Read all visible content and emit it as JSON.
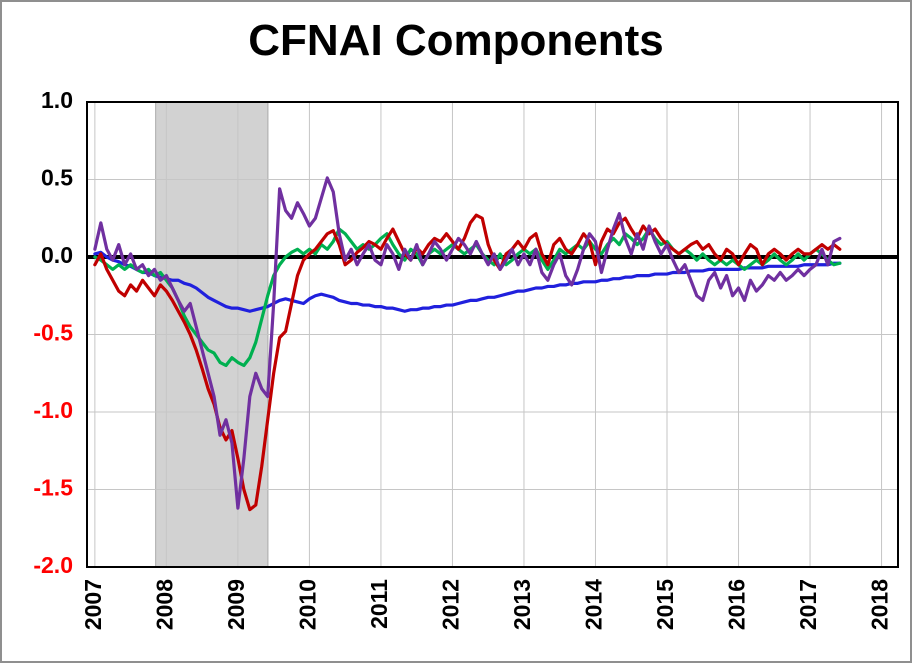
{
  "chart_data": {
    "type": "line",
    "title": "CFNAI Components",
    "legend": "none",
    "grid": true,
    "grid_color": "#c6c6c6",
    "x_axis": {
      "min": 2006.89,
      "max": 2018.23,
      "ticks": [
        2007,
        2008,
        2009,
        2010,
        2011,
        2012,
        2013,
        2014,
        2015,
        2016,
        2017,
        2018
      ]
    },
    "y_axis": {
      "min": -2.0,
      "max": 1.0,
      "ticks": [
        {
          "label": "1.0",
          "value": 1.0,
          "color": "#000000"
        },
        {
          "label": "0.5",
          "value": 0.5,
          "color": "#000000"
        },
        {
          "label": "0.0",
          "value": 0.0,
          "color": "#000000"
        },
        {
          "label": "-0.5",
          "value": -0.5,
          "color": "#ff0000"
        },
        {
          "label": "-1.0",
          "value": -1.0,
          "color": "#ff0000"
        },
        {
          "label": "-1.5",
          "value": -1.5,
          "color": "#ff0000"
        },
        {
          "label": "-2.0",
          "value": -2.0,
          "color": "#ff0000"
        }
      ]
    },
    "recession_band": {
      "start": 2007.85,
      "end": 2009.42,
      "color": "#d2d2d2",
      "edge_color": "#aaaaaa"
    },
    "zero_line": {
      "value": 0,
      "color": "#000000",
      "width": 4
    },
    "x_start": 2007.0,
    "x_step": 0.0833333,
    "series": [
      {
        "name": "blue",
        "color": "#2020dd",
        "values": [
          0.02,
          0.03,
          0.0,
          -0.02,
          -0.03,
          -0.05,
          -0.06,
          -0.08,
          -0.1,
          -0.1,
          -0.12,
          -0.13,
          -0.14,
          -0.15,
          -0.15,
          -0.17,
          -0.18,
          -0.2,
          -0.23,
          -0.26,
          -0.28,
          -0.3,
          -0.32,
          -0.33,
          -0.33,
          -0.34,
          -0.35,
          -0.34,
          -0.33,
          -0.32,
          -0.3,
          -0.28,
          -0.27,
          -0.28,
          -0.29,
          -0.3,
          -0.27,
          -0.25,
          -0.24,
          -0.25,
          -0.26,
          -0.28,
          -0.29,
          -0.3,
          -0.3,
          -0.31,
          -0.31,
          -0.32,
          -0.32,
          -0.33,
          -0.33,
          -0.34,
          -0.35,
          -0.34,
          -0.34,
          -0.33,
          -0.33,
          -0.32,
          -0.32,
          -0.31,
          -0.31,
          -0.3,
          -0.29,
          -0.28,
          -0.28,
          -0.27,
          -0.26,
          -0.26,
          -0.25,
          -0.24,
          -0.23,
          -0.22,
          -0.22,
          -0.21,
          -0.2,
          -0.2,
          -0.19,
          -0.19,
          -0.18,
          -0.18,
          -0.17,
          -0.17,
          -0.16,
          -0.16,
          -0.16,
          -0.15,
          -0.15,
          -0.14,
          -0.14,
          -0.13,
          -0.13,
          -0.12,
          -0.12,
          -0.12,
          -0.11,
          -0.11,
          -0.11,
          -0.1,
          -0.1,
          -0.1,
          -0.09,
          -0.09,
          -0.09,
          -0.08,
          -0.08,
          -0.08,
          -0.08,
          -0.08,
          -0.08,
          -0.07,
          -0.07,
          -0.07,
          -0.07,
          -0.06,
          -0.06,
          -0.06,
          -0.06,
          -0.06,
          -0.06,
          -0.05,
          -0.05,
          -0.05,
          -0.05,
          -0.05,
          -0.04,
          -0.04
        ]
      },
      {
        "name": "green",
        "color": "#00b050",
        "values": [
          0.0,
          -0.02,
          -0.05,
          -0.08,
          -0.05,
          -0.08,
          -0.05,
          -0.08,
          -0.1,
          -0.08,
          -0.12,
          -0.1,
          -0.15,
          -0.2,
          -0.28,
          -0.38,
          -0.45,
          -0.5,
          -0.55,
          -0.6,
          -0.62,
          -0.68,
          -0.7,
          -0.65,
          -0.68,
          -0.7,
          -0.65,
          -0.55,
          -0.4,
          -0.25,
          -0.12,
          -0.05,
          0.0,
          0.03,
          0.05,
          0.02,
          0.05,
          0.02,
          0.08,
          0.05,
          0.1,
          0.18,
          0.15,
          0.1,
          0.05,
          0.08,
          0.05,
          0.08,
          0.12,
          0.15,
          0.08,
          0.02,
          -0.02,
          0.05,
          0.02,
          -0.05,
          0.02,
          0.05,
          0.02,
          0.05,
          0.08,
          0.05,
          0.02,
          0.05,
          0.08,
          0.02,
          -0.02,
          -0.05,
          0.02,
          -0.05,
          -0.02,
          0.02,
          0.05,
          0.02,
          0.05,
          -0.02,
          -0.08,
          -0.02,
          0.05,
          0.02,
          0.05,
          0.08,
          0.05,
          0.1,
          0.05,
          0.02,
          0.08,
          0.12,
          0.08,
          0.15,
          0.12,
          0.08,
          0.12,
          0.18,
          0.12,
          0.08,
          0.1,
          0.05,
          0.02,
          0.05,
          0.02,
          -0.02,
          0.02,
          -0.02,
          -0.05,
          -0.02,
          -0.05,
          -0.02,
          -0.05,
          -0.08,
          -0.05,
          -0.02,
          -0.05,
          -0.02,
          0.02,
          -0.02,
          -0.05,
          -0.02,
          0.02,
          -0.02,
          0.02,
          0.05,
          0.02,
          -0.02,
          -0.05,
          -0.04
        ]
      },
      {
        "name": "red",
        "color": "#c00000",
        "values": [
          -0.05,
          0.02,
          -0.08,
          -0.15,
          -0.22,
          -0.25,
          -0.18,
          -0.22,
          -0.15,
          -0.2,
          -0.25,
          -0.18,
          -0.22,
          -0.28,
          -0.35,
          -0.42,
          -0.5,
          -0.6,
          -0.72,
          -0.85,
          -0.95,
          -1.1,
          -1.18,
          -1.12,
          -1.3,
          -1.5,
          -1.63,
          -1.6,
          -1.35,
          -1.05,
          -0.75,
          -0.52,
          -0.48,
          -0.3,
          -0.12,
          -0.02,
          0.02,
          0.05,
          0.1,
          0.15,
          0.17,
          0.08,
          -0.05,
          -0.02,
          0.03,
          0.06,
          0.1,
          0.08,
          0.05,
          0.12,
          0.18,
          0.1,
          0.02,
          -0.02,
          0.06,
          0.02,
          0.08,
          0.12,
          0.1,
          0.15,
          0.1,
          0.05,
          0.12,
          0.22,
          0.27,
          0.25,
          0.08,
          -0.02,
          -0.08,
          0.02,
          0.05,
          0.1,
          0.05,
          0.12,
          0.15,
          0.02,
          -0.05,
          0.08,
          0.12,
          0.05,
          0.02,
          0.08,
          0.15,
          0.1,
          -0.05,
          0.1,
          0.18,
          0.15,
          0.22,
          0.25,
          0.18,
          0.12,
          0.2,
          0.15,
          0.18,
          0.12,
          0.08,
          0.05,
          0.02,
          0.05,
          0.08,
          0.1,
          0.05,
          0.08,
          0.02,
          -0.02,
          0.05,
          0.02,
          -0.05,
          0.02,
          0.08,
          0.05,
          -0.05,
          0.02,
          0.05,
          0.02,
          -0.02,
          0.02,
          0.05,
          0.02,
          0.02,
          0.05,
          0.08,
          0.05,
          0.08,
          0.05
        ]
      },
      {
        "name": "purple",
        "color": "#7030a0",
        "values": [
          0.05,
          0.22,
          0.05,
          -0.02,
          0.08,
          -0.05,
          0.02,
          -0.08,
          -0.05,
          -0.12,
          -0.08,
          -0.15,
          -0.12,
          -0.2,
          -0.28,
          -0.35,
          -0.3,
          -0.45,
          -0.6,
          -0.75,
          -0.9,
          -1.15,
          -1.05,
          -1.2,
          -1.62,
          -1.3,
          -0.9,
          -0.75,
          -0.85,
          -0.9,
          -0.3,
          0.44,
          0.3,
          0.25,
          0.35,
          0.28,
          0.2,
          0.25,
          0.38,
          0.51,
          0.42,
          0.15,
          -0.02,
          0.05,
          -0.05,
          0.02,
          0.08,
          -0.02,
          -0.05,
          0.08,
          0.02,
          -0.08,
          0.05,
          -0.02,
          0.08,
          -0.05,
          0.02,
          0.1,
          0.05,
          -0.02,
          0.05,
          0.12,
          0.08,
          0.02,
          0.1,
          0.02,
          -0.05,
          0.02,
          -0.08,
          -0.02,
          0.05,
          -0.05,
          0.02,
          -0.05,
          0.05,
          -0.1,
          -0.15,
          -0.05,
          0.02,
          -0.12,
          -0.18,
          -0.08,
          0.05,
          0.15,
          0.1,
          -0.1,
          0.05,
          0.18,
          0.28,
          0.12,
          0.02,
          0.15,
          0.05,
          0.2,
          0.1,
          0.02,
          0.08,
          -0.02,
          -0.1,
          -0.05,
          -0.15,
          -0.25,
          -0.28,
          -0.15,
          -0.1,
          -0.2,
          -0.12,
          -0.25,
          -0.2,
          -0.28,
          -0.15,
          -0.22,
          -0.18,
          -0.12,
          -0.15,
          -0.1,
          -0.15,
          -0.12,
          -0.08,
          -0.12,
          -0.08,
          -0.05,
          0.05,
          -0.05,
          0.1,
          0.12
        ]
      }
    ]
  }
}
